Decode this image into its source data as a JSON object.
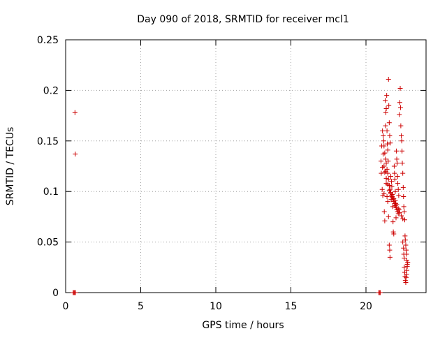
{
  "chart_data": {
    "type": "scatter",
    "title": "Day 090 of 2018, SRMTID for receiver mcl1",
    "xlabel": "GPS time / hours",
    "ylabel": "SRMTID / TECUs",
    "xlim": [
      0,
      24
    ],
    "ylim": [
      0,
      0.25
    ],
    "xticks": [
      "0",
      "5",
      "10",
      "15",
      "20"
    ],
    "yticks": [
      "0",
      "0.05",
      "0.1",
      "0.15",
      "0.2",
      "0.25"
    ],
    "grid": true,
    "marker": "plus",
    "color": "#cc0000",
    "series": [
      {
        "points": [
          [
            0.5,
            0.0
          ],
          [
            0.55,
            0.0
          ],
          [
            0.6,
            0.0
          ],
          [
            0.65,
            0.0
          ],
          [
            0.62,
            0.178
          ],
          [
            0.64,
            0.137
          ],
          [
            20.85,
            0.0
          ],
          [
            20.9,
            0.0
          ],
          [
            20.95,
            0.0
          ],
          [
            21.0,
            0.13
          ],
          [
            21.02,
            0.118
          ],
          [
            21.05,
            0.145
          ],
          [
            21.08,
            0.102
          ],
          [
            21.1,
            0.124
          ],
          [
            21.12,
            0.096
          ],
          [
            21.15,
            0.137
          ],
          [
            21.18,
            0.15
          ],
          [
            21.2,
            0.098
          ],
          [
            21.22,
            0.08
          ],
          [
            21.25,
            0.071
          ],
          [
            21.28,
            0.19
          ],
          [
            21.3,
            0.165
          ],
          [
            21.32,
            0.178
          ],
          [
            21.35,
            0.182
          ],
          [
            21.38,
            0.195
          ],
          [
            21.4,
            0.16
          ],
          [
            21.42,
            0.147
          ],
          [
            21.45,
            0.141
          ],
          [
            21.48,
            0.13
          ],
          [
            21.5,
            0.211
          ],
          [
            21.52,
            0.185
          ],
          [
            21.55,
            0.168
          ],
          [
            21.58,
            0.155
          ],
          [
            21.3,
            0.12
          ],
          [
            21.35,
            0.108
          ],
          [
            21.4,
            0.095
          ],
          [
            21.45,
            0.09
          ],
          [
            21.5,
            0.075
          ],
          [
            21.55,
            0.047
          ],
          [
            21.58,
            0.042
          ],
          [
            21.6,
            0.035
          ],
          [
            21.62,
            0.148
          ],
          [
            21.65,
            0.115
          ],
          [
            21.68,
            0.092
          ],
          [
            21.7,
            0.11
          ],
          [
            21.72,
            0.105
          ],
          [
            21.75,
            0.095
          ],
          [
            21.78,
            0.085
          ],
          [
            21.8,
            0.07
          ],
          [
            21.82,
            0.06
          ],
          [
            21.85,
            0.058
          ],
          [
            21.88,
            0.125
          ],
          [
            21.9,
            0.118
          ],
          [
            21.92,
            0.112
          ],
          [
            21.95,
            0.1
          ],
          [
            21.98,
            0.088
          ],
          [
            22.0,
            0.074
          ],
          [
            22.02,
            0.14
          ],
          [
            22.05,
            0.132
          ],
          [
            22.08,
            0.128
          ],
          [
            22.1,
            0.115
          ],
          [
            22.12,
            0.108
          ],
          [
            22.15,
            0.102
          ],
          [
            22.18,
            0.096
          ],
          [
            22.2,
            0.082
          ],
          [
            22.22,
            0.176
          ],
          [
            22.25,
            0.188
          ],
          [
            22.28,
            0.202
          ],
          [
            22.3,
            0.183
          ],
          [
            22.32,
            0.165
          ],
          [
            22.35,
            0.155
          ],
          [
            22.38,
            0.15
          ],
          [
            22.4,
            0.14
          ],
          [
            22.42,
            0.128
          ],
          [
            22.45,
            0.118
          ],
          [
            22.48,
            0.104
          ],
          [
            22.5,
            0.095
          ],
          [
            22.52,
            0.085
          ],
          [
            22.55,
            0.08
          ],
          [
            22.58,
            0.072
          ],
          [
            22.6,
            0.056
          ],
          [
            22.62,
            0.052
          ],
          [
            22.65,
            0.047
          ],
          [
            22.68,
            0.042
          ],
          [
            22.7,
            0.038
          ],
          [
            22.72,
            0.032
          ],
          [
            22.75,
            0.028
          ],
          [
            22.55,
            0.025
          ],
          [
            22.58,
            0.02
          ],
          [
            22.6,
            0.016
          ],
          [
            22.62,
            0.012
          ],
          [
            22.65,
            0.01
          ],
          [
            22.68,
            0.015
          ],
          [
            22.7,
            0.018
          ],
          [
            22.72,
            0.022
          ],
          [
            22.75,
            0.026
          ],
          [
            22.78,
            0.03
          ],
          [
            22.45,
            0.05
          ],
          [
            22.5,
            0.044
          ],
          [
            22.52,
            0.038
          ],
          [
            22.55,
            0.034
          ],
          [
            21.1,
            0.16
          ],
          [
            21.15,
            0.155
          ],
          [
            21.2,
            0.145
          ],
          [
            21.25,
            0.138
          ],
          [
            21.3,
            0.132
          ],
          [
            21.35,
            0.128
          ],
          [
            21.4,
            0.122
          ],
          [
            21.45,
            0.118
          ],
          [
            21.5,
            0.112
          ],
          [
            21.55,
            0.106
          ],
          [
            21.6,
            0.102
          ],
          [
            21.65,
            0.098
          ],
          [
            21.7,
            0.096
          ],
          [
            21.75,
            0.094
          ],
          [
            21.8,
            0.092
          ],
          [
            21.85,
            0.09
          ],
          [
            21.9,
            0.088
          ],
          [
            21.95,
            0.086
          ],
          [
            22.0,
            0.084
          ],
          [
            22.05,
            0.082
          ],
          [
            22.1,
            0.08
          ],
          [
            22.15,
            0.078
          ],
          [
            21.2,
            0.125
          ],
          [
            21.25,
            0.119
          ],
          [
            21.35,
            0.113
          ],
          [
            21.45,
            0.107
          ],
          [
            21.55,
            0.101
          ],
          [
            21.65,
            0.099
          ],
          [
            21.75,
            0.097
          ],
          [
            21.85,
            0.093
          ],
          [
            21.95,
            0.091
          ],
          [
            22.05,
            0.087
          ],
          [
            22.15,
            0.083
          ],
          [
            22.25,
            0.079
          ],
          [
            22.35,
            0.076
          ],
          [
            22.45,
            0.073
          ]
        ]
      }
    ]
  }
}
